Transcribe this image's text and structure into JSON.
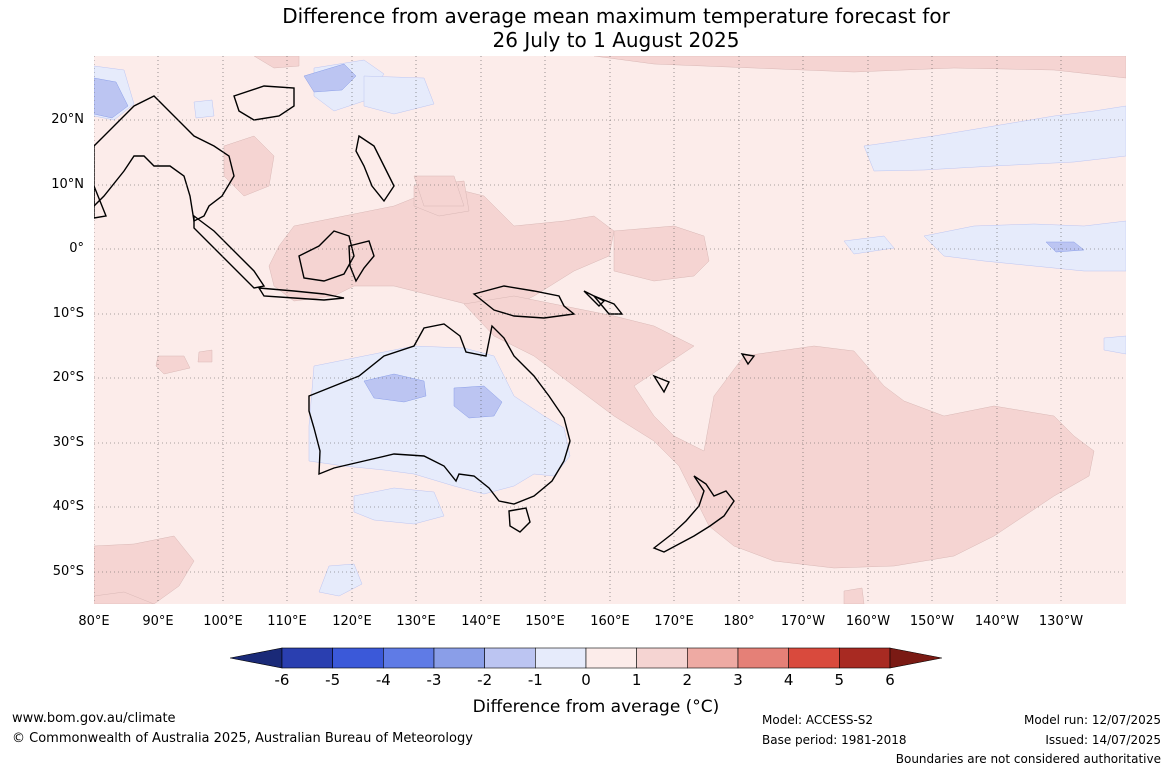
{
  "title_line1": "Difference from average mean maximum temperature forecast for",
  "title_line2": "26 July to 1 August 2025",
  "lat_labels": [
    "20°N",
    "10°N",
    "0°",
    "10°S",
    "20°S",
    "30°S",
    "40°S",
    "50°S"
  ],
  "lon_labels": [
    "80°E",
    "90°E",
    "100°E",
    "110°E",
    "120°E",
    "130°E",
    "140°E",
    "150°E",
    "160°E",
    "170°E",
    "180°",
    "170°W",
    "160°W",
    "150°W",
    "140°W",
    "130°W"
  ],
  "colorbar": {
    "ticks": [
      "-6",
      "-5",
      "-4",
      "-3",
      "-2",
      "-1",
      "0",
      "1",
      "2",
      "3",
      "4",
      "5",
      "6"
    ],
    "label": "Difference from average (°C)",
    "colors": [
      "#1a2a78",
      "#2a3fb0",
      "#3b59d9",
      "#5f7be6",
      "#8a9ee8",
      "#bcc5f2",
      "#e6ebfb",
      "#fcecea",
      "#f5d4d2",
      "#eeaaa3",
      "#e58077",
      "#d94a3d",
      "#a82a22",
      "#7a1a14"
    ]
  },
  "footer": {
    "website": "www.bom.gov.au/climate",
    "copyright": "© Commonwealth of Australia 2025, Australian Bureau of Meteorology",
    "model": "Model: ACCESS-S2",
    "base_period": "Base period: 1981-2018",
    "model_run": "Model run: 12/07/2025",
    "issued": "Issued: 14/07/2025",
    "disclaimer": "Boundaries are not considered authoritative"
  }
}
